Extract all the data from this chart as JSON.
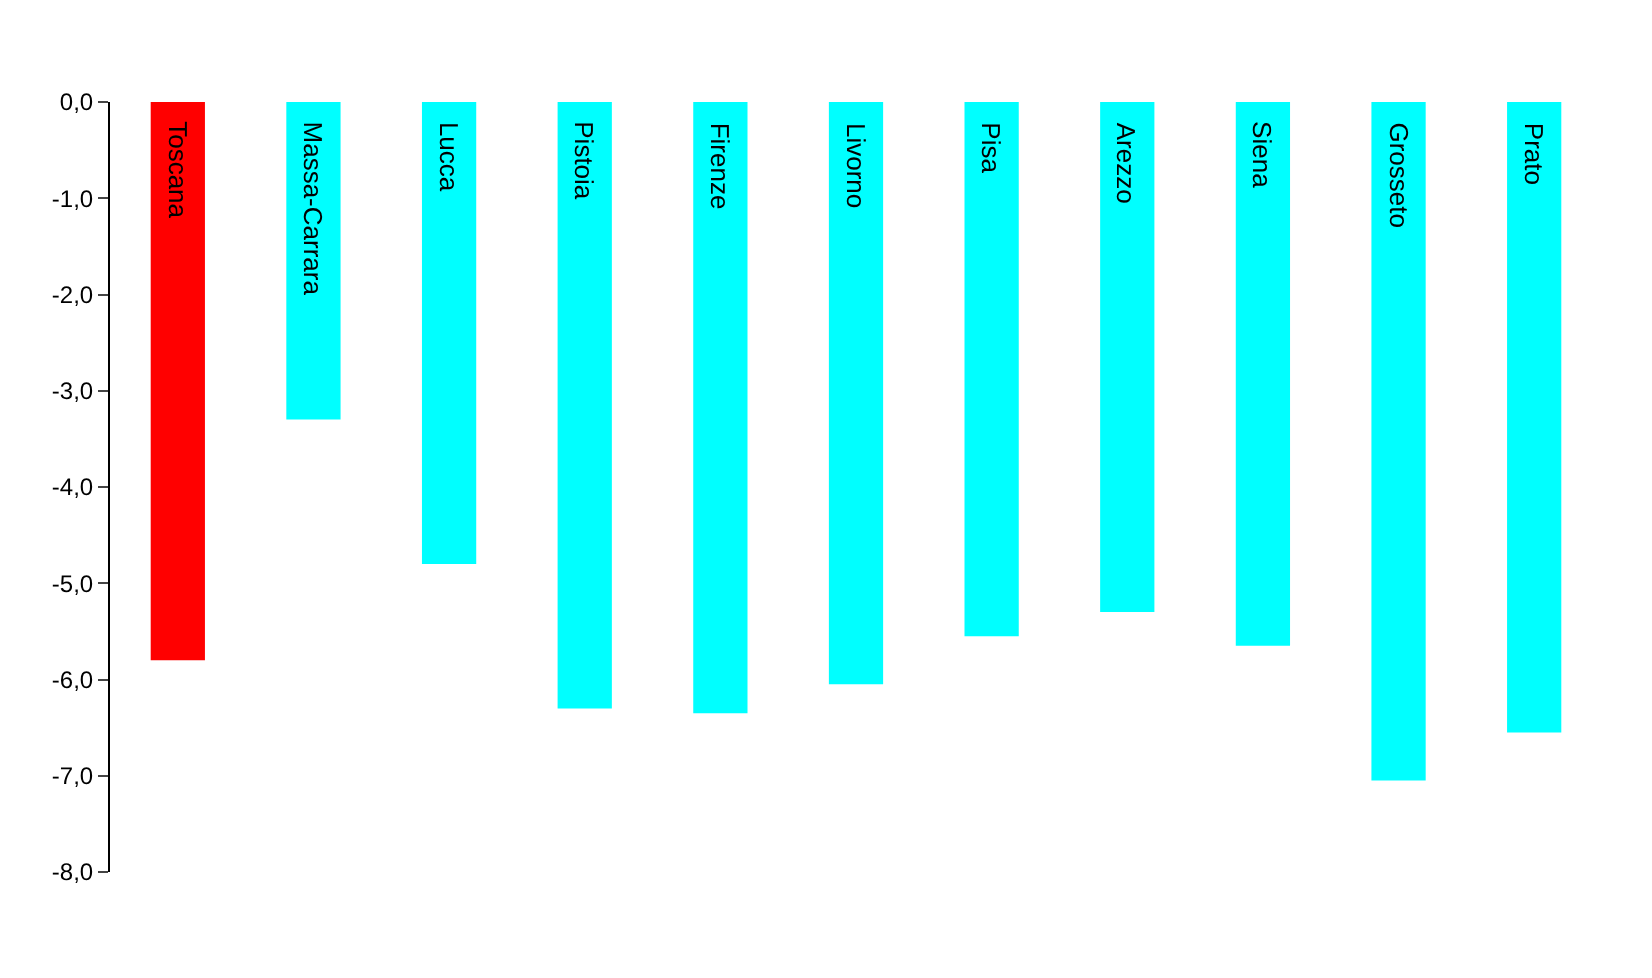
{
  "chart_data": {
    "type": "bar",
    "categories": [
      "Toscana",
      "Massa-Carrara",
      "Lucca",
      "Pistoia",
      "Firenze",
      "Livorno",
      "Pisa",
      "Arezzo",
      "Siena",
      "Grosseto",
      "Prato"
    ],
    "values": [
      -5.8,
      -3.3,
      -4.8,
      -6.3,
      -6.35,
      -6.05,
      -5.55,
      -5.3,
      -5.65,
      -7.05,
      -6.55
    ],
    "colors": [
      "#ff0000",
      "#00ffff",
      "#00ffff",
      "#00ffff",
      "#00ffff",
      "#00ffff",
      "#00ffff",
      "#00ffff",
      "#00ffff",
      "#00ffff",
      "#00ffff"
    ],
    "ylim": [
      -8,
      0
    ],
    "yticks": [
      {
        "value": 0,
        "label": "0,0"
      },
      {
        "value": -1,
        "label": "-1,0"
      },
      {
        "value": -2,
        "label": "-2,0"
      },
      {
        "value": -3,
        "label": "-3,0"
      },
      {
        "value": -4,
        "label": "-4,0"
      },
      {
        "value": -5,
        "label": "-5,0"
      },
      {
        "value": -6,
        "label": "-6,0"
      },
      {
        "value": -7,
        "label": "-7,0"
      },
      {
        "value": -8,
        "label": "-8,0"
      }
    ],
    "grid": false
  }
}
